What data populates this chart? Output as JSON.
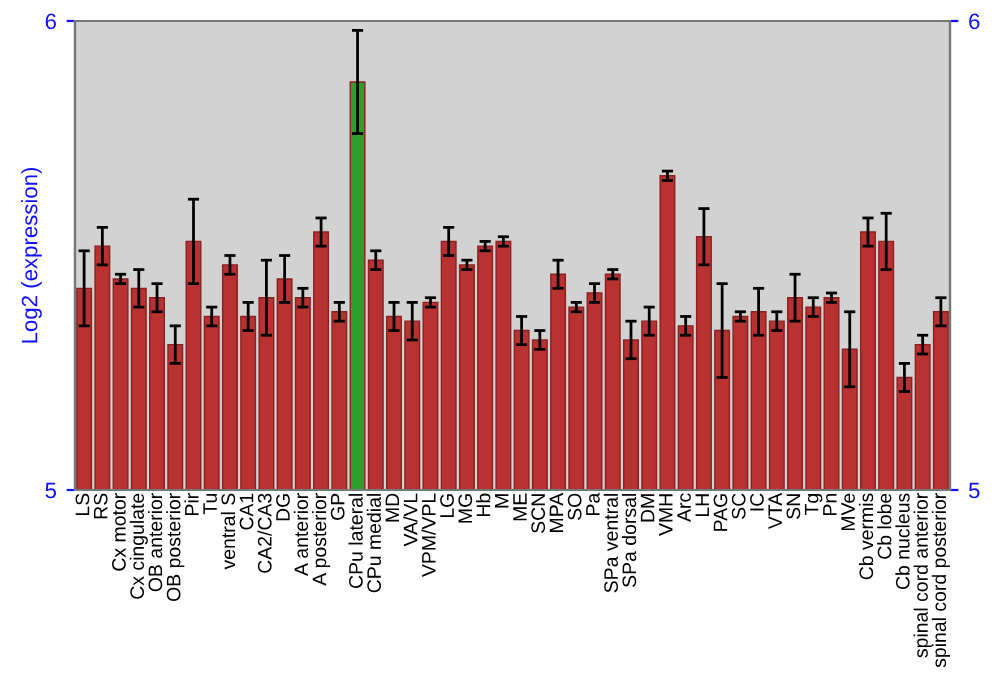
{
  "chart_data": {
    "type": "bar",
    "ylabel": "Log2 (expression)",
    "categories": [
      "LS",
      "RS",
      "Cx motor",
      "Cx cingulate",
      "OB anterior",
      "OB posterior",
      "Pir",
      "Tu",
      "ventral S",
      "CA1",
      "CA2/CA3",
      "DG",
      "A anterior",
      "A posterior",
      "GP",
      "CPu lateral",
      "CPu medial",
      "MD",
      "VA/VL",
      "VPM/VPL",
      "LG",
      "MG",
      "Hb",
      "M",
      "ME",
      "SCN",
      "MPA",
      "SO",
      "Pa",
      "SPa ventral",
      "SPa dorsal",
      "DM",
      "VMH",
      "Arc",
      "LH",
      "PAG",
      "SC",
      "IC",
      "VTA",
      "SN",
      "Tg",
      "Pn",
      "MVe",
      "Cb vermis",
      "Cb lobe",
      "Cb nucleus",
      "spinal cord anterior",
      "spinal cord posterior"
    ],
    "values": [
      5.43,
      5.52,
      5.45,
      5.43,
      5.41,
      5.31,
      5.53,
      5.37,
      5.48,
      5.37,
      5.41,
      5.45,
      5.41,
      5.55,
      5.38,
      5.87,
      5.49,
      5.37,
      5.36,
      5.4,
      5.53,
      5.48,
      5.52,
      5.53,
      5.34,
      5.32,
      5.46,
      5.39,
      5.42,
      5.46,
      5.32,
      5.36,
      5.67,
      5.35,
      5.54,
      5.34,
      5.37,
      5.38,
      5.36,
      5.41,
      5.39,
      5.41,
      5.3,
      5.55,
      5.53,
      5.24,
      5.31,
      5.38
    ],
    "errors": [
      0.08,
      0.04,
      0.01,
      0.04,
      0.03,
      0.04,
      0.09,
      0.02,
      0.02,
      0.03,
      0.08,
      0.05,
      0.02,
      0.03,
      0.02,
      0.11,
      0.02,
      0.03,
      0.04,
      0.01,
      0.03,
      0.01,
      0.01,
      0.01,
      0.03,
      0.02,
      0.03,
      0.01,
      0.02,
      0.01,
      0.04,
      0.03,
      0.01,
      0.02,
      0.06,
      0.1,
      0.01,
      0.05,
      0.02,
      0.05,
      0.02,
      0.01,
      0.08,
      0.03,
      0.06,
      0.03,
      0.02,
      0.03
    ],
    "colors": [
      "#b83232",
      "#b83232",
      "#b83232",
      "#b83232",
      "#b83232",
      "#b83232",
      "#b83232",
      "#b83232",
      "#b83232",
      "#b83232",
      "#b83232",
      "#b83232",
      "#b83232",
      "#b83232",
      "#b83232",
      "#2e9e2e",
      "#b83232",
      "#b83232",
      "#b83232",
      "#b83232",
      "#b83232",
      "#b83232",
      "#b83232",
      "#b83232",
      "#b83232",
      "#b83232",
      "#b83232",
      "#b83232",
      "#b83232",
      "#b83232",
      "#b83232",
      "#b83232",
      "#b83232",
      "#b83232",
      "#b83232",
      "#b83232",
      "#b83232",
      "#b83232",
      "#b83232",
      "#b83232",
      "#b83232",
      "#b83232",
      "#b83232",
      "#b83232",
      "#b83232",
      "#b83232",
      "#b83232",
      "#b83232"
    ],
    "ylim": [
      5,
      6
    ],
    "yticks": [
      5,
      6
    ],
    "y2lim": [
      5,
      6
    ],
    "y2ticks": [
      5,
      6
    ],
    "grid": false,
    "legend": false
  }
}
